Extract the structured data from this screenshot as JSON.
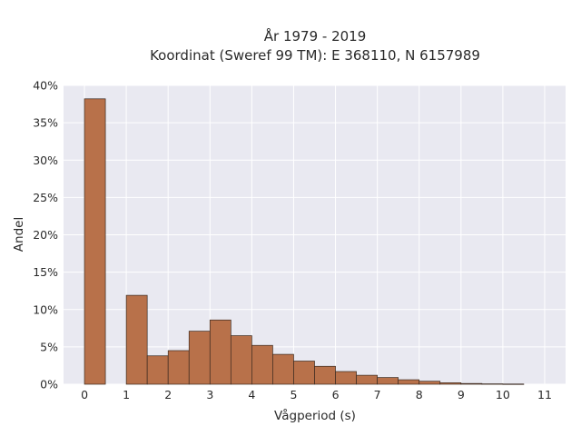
{
  "chart_data": {
    "type": "bar",
    "title_line1": "År 1979 - 2019",
    "title_line2": "Koordinat (Sweref 99 TM): E 368110, N 6157989",
    "xlabel": "Vågperiod (s)",
    "ylabel": "Andel",
    "xlim": [
      -0.5,
      11.5
    ],
    "ylim": [
      0,
      0.4
    ],
    "x_ticks": [
      0,
      1,
      2,
      3,
      4,
      5,
      6,
      7,
      8,
      9,
      10,
      11
    ],
    "y_ticks": [
      0,
      0.05,
      0.1,
      0.15,
      0.2,
      0.25,
      0.3,
      0.35,
      0.4
    ],
    "y_tick_labels": [
      "0%",
      "5%",
      "10%",
      "15%",
      "20%",
      "25%",
      "30%",
      "35%",
      "40%"
    ],
    "bin_width": 0.5,
    "bins": [
      {
        "start": 0.0,
        "value": 0.382
      },
      {
        "start": 1.0,
        "value": 0.119
      },
      {
        "start": 1.5,
        "value": 0.038
      },
      {
        "start": 2.0,
        "value": 0.045
      },
      {
        "start": 2.5,
        "value": 0.071
      },
      {
        "start": 3.0,
        "value": 0.086
      },
      {
        "start": 3.5,
        "value": 0.065
      },
      {
        "start": 4.0,
        "value": 0.052
      },
      {
        "start": 4.5,
        "value": 0.04
      },
      {
        "start": 5.0,
        "value": 0.031
      },
      {
        "start": 5.5,
        "value": 0.024
      },
      {
        "start": 6.0,
        "value": 0.017
      },
      {
        "start": 6.5,
        "value": 0.012
      },
      {
        "start": 7.0,
        "value": 0.009
      },
      {
        "start": 7.5,
        "value": 0.006
      },
      {
        "start": 8.0,
        "value": 0.004
      },
      {
        "start": 8.5,
        "value": 0.002
      },
      {
        "start": 9.0,
        "value": 0.001
      },
      {
        "start": 9.5,
        "value": 0.0005
      },
      {
        "start": 10.0,
        "value": 0.0003
      }
    ],
    "grid": true,
    "bar_color": "#b8714a",
    "bar_edge_color": "#3a2a20",
    "plot_background": "#e9e9f1",
    "grid_color": "#ffffff"
  }
}
